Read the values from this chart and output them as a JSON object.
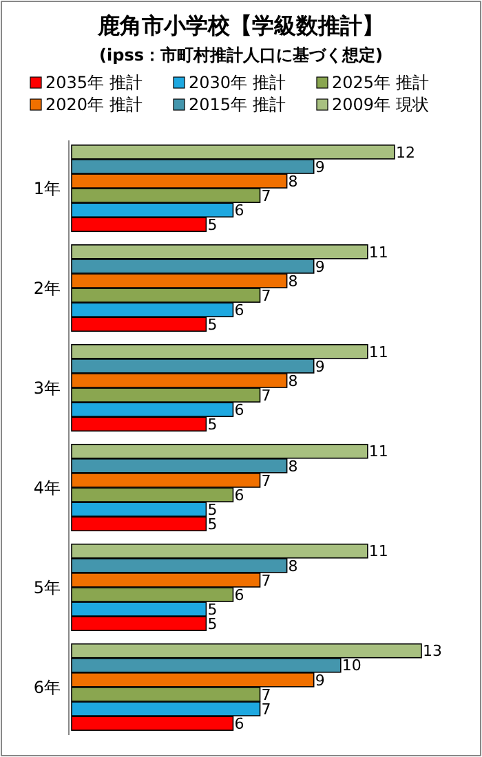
{
  "chart_data": {
    "type": "bar",
    "orientation": "horizontal",
    "title": "鹿角市小学校【学級数推計】",
    "subtitle": "(ipss：市町村推計人口に基づく想定)",
    "categories": [
      "1年",
      "2年",
      "3年",
      "4年",
      "5年",
      "6年"
    ],
    "series": [
      {
        "name": "2035年 推計",
        "color": "#ff0000",
        "values": [
          5,
          5,
          5,
          5,
          5,
          6
        ]
      },
      {
        "name": "2030年 推計",
        "color": "#1ea8e0",
        "values": [
          6,
          6,
          6,
          5,
          5,
          7
        ]
      },
      {
        "name": "2025年 推計",
        "color": "#8aa650",
        "values": [
          7,
          7,
          7,
          6,
          6,
          7
        ]
      },
      {
        "name": "2020年 推計",
        "color": "#f07000",
        "values": [
          8,
          8,
          8,
          7,
          7,
          9
        ]
      },
      {
        "name": "2015年 推計",
        "color": "#4496ad",
        "values": [
          9,
          9,
          9,
          8,
          8,
          10
        ]
      },
      {
        "name": "2009年 現状",
        "color": "#a8c080",
        "values": [
          12,
          11,
          11,
          11,
          11,
          13
        ]
      }
    ],
    "data_labels": true,
    "legend": "top"
  }
}
